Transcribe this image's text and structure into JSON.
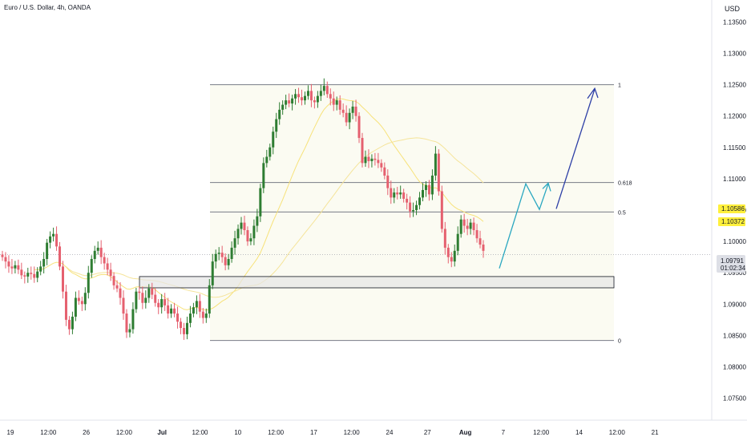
{
  "title": "Euro / U.S. Dollar, 4h, OANDA",
  "currency": "USD",
  "price_labels": {
    "ma_fast": "1.10586",
    "ma_slow": "1.10372",
    "current_price": "1.09791",
    "countdown": "01:02:34"
  },
  "colors": {
    "up": "#26a69a",
    "down": "#ef5350",
    "candle_up": "#2e7d32",
    "candle_down": "#e5606f",
    "ma_fast": "#f7e27a",
    "ma_slow": "#f5e49a",
    "fib_fill": "#fbfbf2",
    "level_line": "#787b86",
    "zone_fill": "#e6e6e6",
    "arrow_light": "#2aa7c0",
    "arrow_dark": "#2d3fa6",
    "badge_yellow": "#fff03c"
  },
  "chart_data": {
    "type": "candlestick",
    "title": "Euro / U.S. Dollar, 4h, OANDA",
    "y_range": [
      1.0715,
      1.1385
    ],
    "y_ticks": [
      "1.13500",
      "1.13000",
      "1.12500",
      "1.12000",
      "1.11500",
      "1.11000",
      "1.10500",
      "1.10000",
      "1.09500",
      "1.09000",
      "1.08500",
      "1.08000",
      "1.07500"
    ],
    "x_ticks": [
      "19",
      "12:00",
      "26",
      "12:00",
      "Jul",
      "12:00",
      "10",
      "12:00",
      "17",
      "12:00",
      "24",
      "27",
      "Aug",
      "7",
      "12:00",
      "14",
      "12:00",
      "21"
    ],
    "x_tick_bold": [
      "Jul",
      "Aug"
    ],
    "fib_levels": [
      {
        "label": "1",
        "price": 1.125
      },
      {
        "label": "0.618",
        "price": 1.1094
      },
      {
        "label": "0.5",
        "price": 1.1047
      },
      {
        "label": "0",
        "price": 1.0842
      }
    ],
    "support_zone": {
      "top": 1.0944,
      "bottom": 1.0926
    },
    "closes": [
      1.0975,
      1.0968,
      1.096,
      1.0957,
      1.0962,
      1.0955,
      1.0946,
      1.0944,
      1.095,
      1.0948,
      1.0942,
      1.0952,
      1.096,
      1.0972,
      1.0998,
      1.1008,
      1.1012,
      1.0992,
      1.096,
      1.092,
      1.0875,
      1.086,
      1.088,
      1.091,
      1.0905,
      1.09,
      1.0918,
      1.095,
      1.0972,
      1.0985,
      1.099,
      1.0975,
      1.0965,
      1.0955,
      1.0945,
      1.093,
      1.0925,
      1.091,
      1.0885,
      1.0855,
      1.086,
      1.0892,
      1.092,
      1.0918,
      1.0902,
      1.091,
      1.0925,
      1.0915,
      1.0902,
      1.0895,
      1.0908,
      1.0898,
      1.0885,
      1.0893,
      1.0885,
      1.0872,
      1.0862,
      1.0852,
      1.087,
      1.0885,
      1.0895,
      1.0905,
      1.0888,
      1.0878,
      1.0885,
      1.093,
      1.0968,
      1.098,
      1.0982,
      1.0975,
      1.0962,
      1.0972,
      1.099,
      1.1005,
      1.102,
      1.103,
      1.1018,
      1.1,
      1.1005,
      1.1025,
      1.104,
      1.1085,
      1.1125,
      1.1135,
      1.115,
      1.1175,
      1.1195,
      1.121,
      1.1218,
      1.1225,
      1.122,
      1.1228,
      1.1235,
      1.123,
      1.1225,
      1.1232,
      1.124,
      1.1225,
      1.1222,
      1.1232,
      1.124,
      1.1248,
      1.1235,
      1.1228,
      1.1218,
      1.1225,
      1.121,
      1.1205,
      1.119,
      1.1205,
      1.1215,
      1.12,
      1.1165,
      1.1125,
      1.1135,
      1.1128,
      1.1132,
      1.113,
      1.1125,
      1.1118,
      1.1105,
      1.1085,
      1.107,
      1.1078,
      1.1075,
      1.1078,
      1.1068,
      1.1062,
      1.1048,
      1.105,
      1.1058,
      1.107,
      1.1082,
      1.109,
      1.1075,
      1.1105,
      1.114,
      1.108,
      1.102,
      1.099,
      1.0975,
      1.0968,
      1.0985,
      1.1012,
      1.1035,
      1.1025,
      1.102,
      1.103,
      1.1018,
      1.1005,
      1.0995,
      1.0985
    ]
  }
}
